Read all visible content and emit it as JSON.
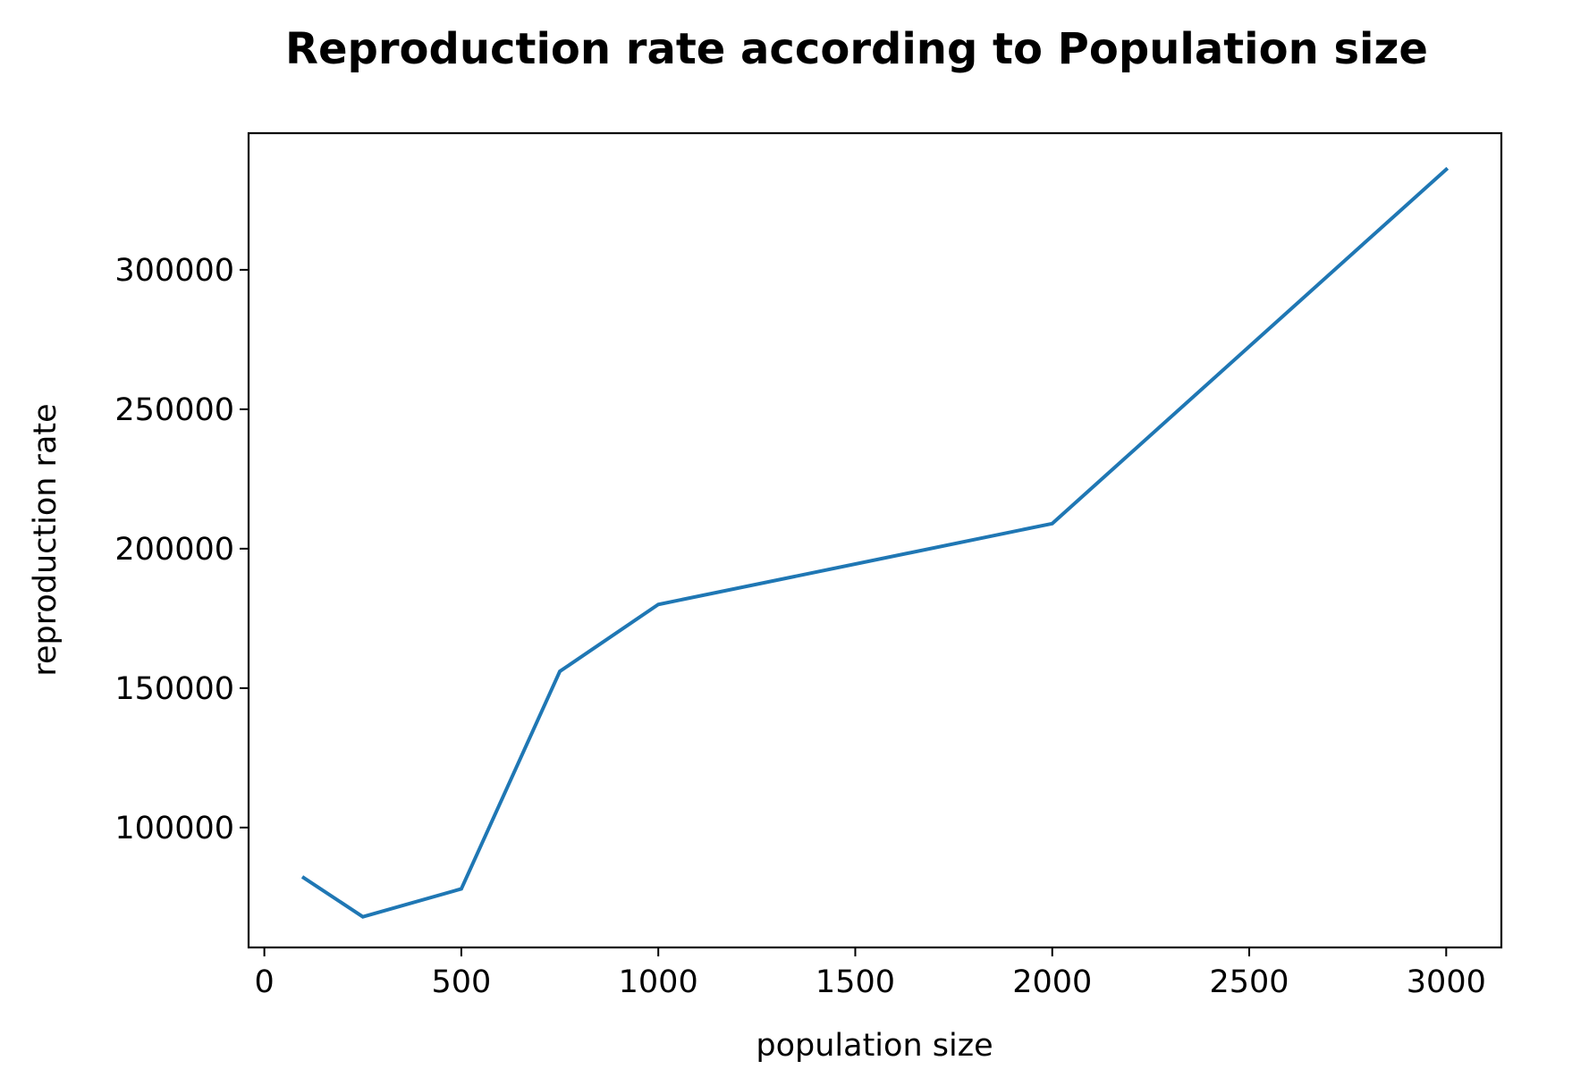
{
  "chart_data": {
    "type": "line",
    "title": "Reproduction rate according to Population size",
    "xlabel": "population size",
    "ylabel": "reproduction rate",
    "x": [
      100,
      250,
      500,
      750,
      1000,
      2000,
      3000
    ],
    "series": [
      {
        "values": [
          82000,
          68000,
          78000,
          156000,
          180000,
          209000,
          336000
        ],
        "color": "#1f77b4"
      }
    ],
    "xlim": [
      -40,
      3140
    ],
    "ylim": [
      57000,
      349000
    ],
    "xticks": [
      0,
      500,
      1000,
      1500,
      2000,
      2500,
      3000
    ],
    "xtick_labels": [
      "0",
      "500",
      "1000",
      "1500",
      "2000",
      "2500",
      "3000"
    ],
    "yticks": [
      100000,
      150000,
      200000,
      250000,
      300000
    ],
    "ytick_labels": [
      "100000",
      "150000",
      "200000",
      "250000",
      "300000"
    ],
    "grid": false,
    "legend": "none"
  }
}
